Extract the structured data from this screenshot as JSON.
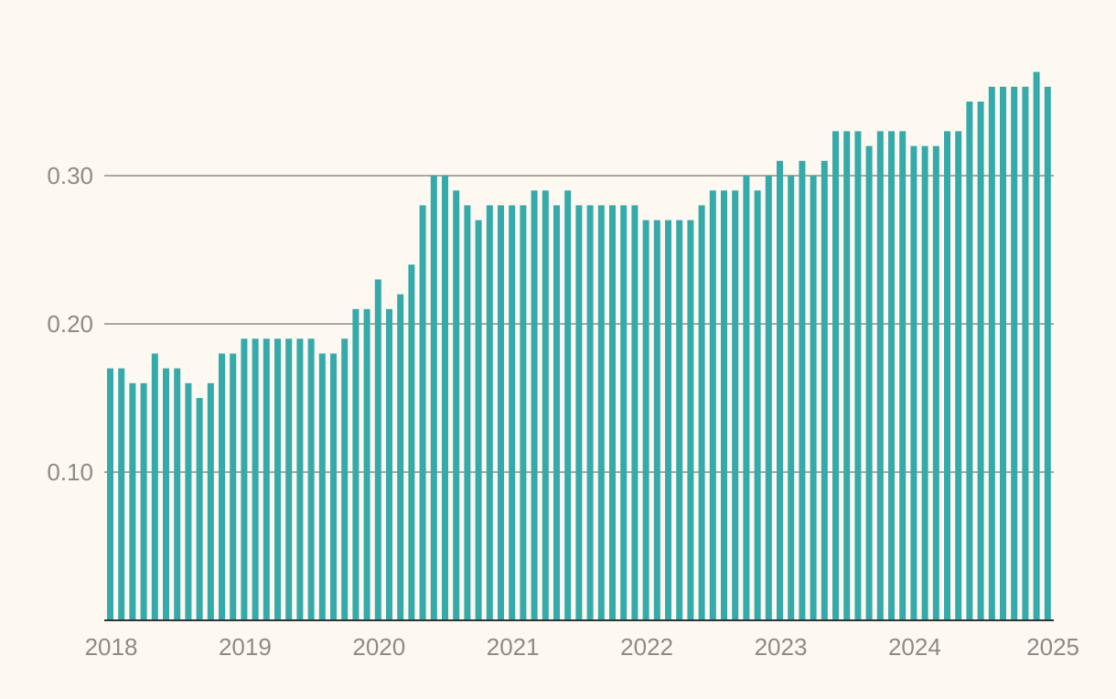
{
  "chart_data": {
    "type": "bar",
    "title": "",
    "xlabel": "",
    "ylabel": "",
    "ylim": [
      0,
      0.37
    ],
    "yticks": [
      {
        "value": 0.1,
        "label": "0.10"
      },
      {
        "value": 0.2,
        "label": "0.20"
      },
      {
        "value": 0.3,
        "label": "0.30"
      }
    ],
    "xticks": [
      {
        "value": 2018,
        "label": "2018"
      },
      {
        "value": 2019,
        "label": "2019"
      },
      {
        "value": 2020,
        "label": "2020"
      },
      {
        "value": 2021,
        "label": "2021"
      },
      {
        "value": 2022,
        "label": "2022"
      },
      {
        "value": 2023,
        "label": "2023"
      },
      {
        "value": 2024,
        "label": "2024"
      },
      {
        "value": 2025,
        "label": "2025"
      }
    ],
    "grid": true,
    "legend": "none",
    "colors": {
      "bar": "#35aaaa",
      "grid": "#8f8a86",
      "axis": "#333333",
      "background": "#fdf9f1"
    },
    "series": [
      {
        "x": [
          "2018-01",
          "2018-02",
          "2018-03",
          "2018-04",
          "2018-05",
          "2018-06",
          "2018-07",
          "2018-08",
          "2018-09",
          "2018-10",
          "2018-11",
          "2018-12",
          "2019-01",
          "2019-02",
          "2019-03",
          "2019-04",
          "2019-05",
          "2019-06",
          "2019-07",
          "2019-08",
          "2019-09",
          "2019-10",
          "2019-11",
          "2019-12",
          "2020-01",
          "2020-02",
          "2020-03",
          "2020-04",
          "2020-05",
          "2020-06",
          "2020-07",
          "2020-08",
          "2020-09",
          "2020-10",
          "2020-11",
          "2020-12",
          "2021-01",
          "2021-02",
          "2021-03",
          "2021-04",
          "2021-05",
          "2021-06",
          "2021-07",
          "2021-08",
          "2021-09",
          "2021-10",
          "2021-11",
          "2021-12",
          "2022-01",
          "2022-02",
          "2022-03",
          "2022-04",
          "2022-05",
          "2022-06",
          "2022-07",
          "2022-08",
          "2022-09",
          "2022-10",
          "2022-11",
          "2022-12",
          "2023-01",
          "2023-02",
          "2023-03",
          "2023-04",
          "2023-05",
          "2023-06",
          "2023-07",
          "2023-08",
          "2023-09",
          "2023-10",
          "2023-11",
          "2023-12",
          "2024-01",
          "2024-02",
          "2024-03",
          "2024-04",
          "2024-05",
          "2024-06",
          "2024-07",
          "2024-08",
          "2024-09",
          "2024-10",
          "2024-11",
          "2024-12",
          "2025-01"
        ],
        "values": [
          0.17,
          0.17,
          0.16,
          0.16,
          0.18,
          0.17,
          0.17,
          0.16,
          0.15,
          0.16,
          0.18,
          0.18,
          0.19,
          0.19,
          0.19,
          0.19,
          0.19,
          0.19,
          0.19,
          0.18,
          0.18,
          0.19,
          0.21,
          0.21,
          0.23,
          0.21,
          0.22,
          0.24,
          0.28,
          0.3,
          0.3,
          0.29,
          0.28,
          0.27,
          0.28,
          0.28,
          0.28,
          0.28,
          0.29,
          0.29,
          0.28,
          0.29,
          0.28,
          0.28,
          0.28,
          0.28,
          0.28,
          0.28,
          0.27,
          0.27,
          0.27,
          0.27,
          0.27,
          0.28,
          0.29,
          0.29,
          0.29,
          0.3,
          0.29,
          0.3,
          0.31,
          0.3,
          0.31,
          0.3,
          0.31,
          0.33,
          0.33,
          0.33,
          0.32,
          0.33,
          0.33,
          0.33,
          0.32,
          0.32,
          0.32,
          0.33,
          0.33,
          0.35,
          0.35,
          0.36,
          0.36,
          0.36,
          0.36,
          0.37,
          0.36
        ]
      }
    ]
  }
}
